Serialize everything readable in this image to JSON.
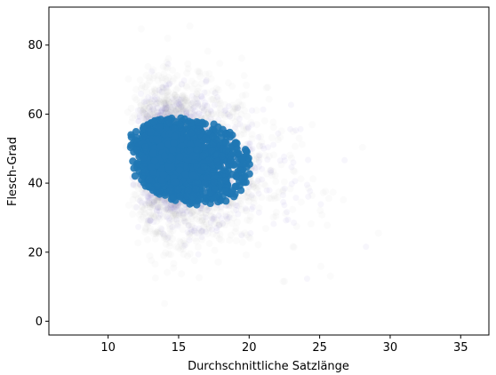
{
  "chart_data": {
    "type": "scatter",
    "xlabel": "Durchschnittliche Satzlänge",
    "ylabel": "Flesch-Grad",
    "xlim": [
      5.8,
      37.0
    ],
    "ylim": [
      -4.0,
      91.0
    ],
    "x_ticks": [
      10,
      15,
      20,
      25,
      30,
      35
    ],
    "y_ticks": [
      0,
      20,
      40,
      60,
      80
    ],
    "grid": false,
    "colors": {
      "core": "#1f77b4",
      "halo": "#8a7fd0",
      "noise": "#7a7a7a"
    },
    "series": [
      {
        "description": "dense core of points",
        "x_range": [
          11,
          21
        ],
        "y_range": [
          22,
          64
        ],
        "centroid": [
          15.5,
          43
        ],
        "opacity": 0.9
      },
      {
        "description": "translucent outlier cloud",
        "x_range": [
          6.5,
          36
        ],
        "y_range": [
          0,
          88
        ],
        "opacity": 0.03
      }
    ]
  }
}
